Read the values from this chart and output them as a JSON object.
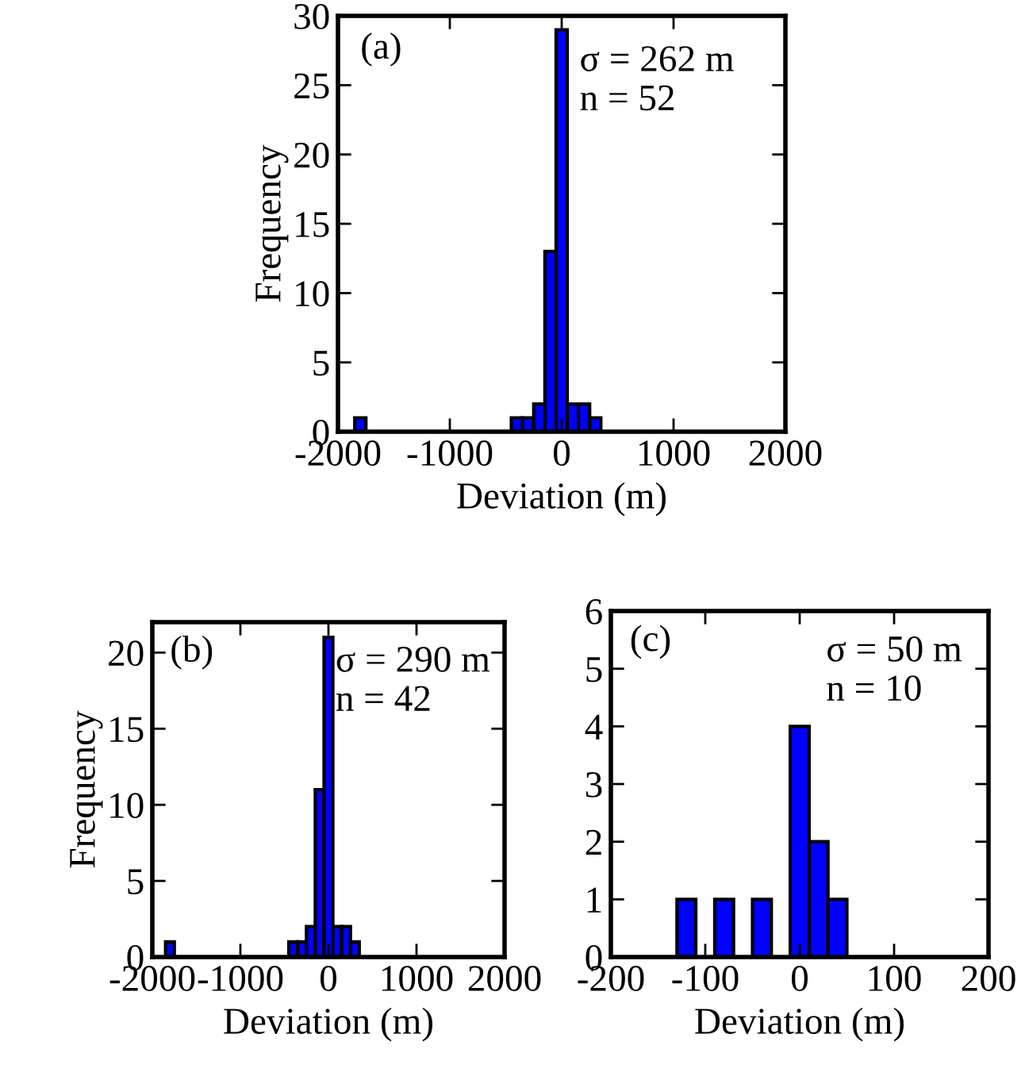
{
  "chart_data": [
    {
      "type": "histogram",
      "xlabel": "Deviation (m)",
      "ylabel": "Frequency",
      "color": "#0000ff",
      "annotations": [
        "(a)",
        "σ = 262 m\nn = 52"
      ],
      "bins": [
        -1850,
        -1750,
        -1650,
        -1550,
        -1450,
        -1350,
        -1250,
        -1150,
        -1050,
        -950,
        -850,
        -750,
        -650,
        -550,
        -450,
        -350,
        -250,
        -150,
        -50,
        50,
        150,
        250,
        350
      ],
      "values": [
        1,
        0,
        0,
        0,
        0,
        0,
        0,
        0,
        0,
        0,
        0,
        0,
        0,
        0,
        1,
        1,
        2,
        13,
        29,
        2,
        2,
        1
      ],
      "xlim": [
        -2000,
        2000
      ],
      "xticks": [
        -2000,
        -1000,
        0,
        1000,
        2000
      ],
      "ylim": [
        0,
        30
      ],
      "yticks": [
        0,
        5,
        10,
        15,
        20,
        25,
        30
      ]
    },
    {
      "type": "histogram",
      "xlabel": "Deviation (m)",
      "ylabel": "Frequency",
      "color": "#0000ff",
      "annotations": [
        "(b)",
        "σ = 290 m\nn = 42"
      ],
      "bins": [
        -1850,
        -1750,
        -1650,
        -1550,
        -1450,
        -1350,
        -1250,
        -1150,
        -1050,
        -950,
        -850,
        -750,
        -650,
        -550,
        -450,
        -350,
        -250,
        -150,
        -50,
        50,
        150,
        250,
        350
      ],
      "values": [
        1,
        0,
        0,
        0,
        0,
        0,
        0,
        0,
        0,
        0,
        0,
        0,
        0,
        0,
        1,
        1,
        2,
        11,
        21,
        2,
        2,
        1
      ],
      "xlim": [
        -2000,
        2000
      ],
      "xticks": [
        -2000,
        -1000,
        0,
        1000,
        2000
      ],
      "ylim": [
        0,
        22
      ],
      "yticks": [
        0,
        5,
        10,
        15,
        20
      ]
    },
    {
      "type": "histogram",
      "xlabel": "Deviation (m)",
      "color": "#0000ff",
      "annotations": [
        "(c)",
        "σ = 50 m\nn = 10"
      ],
      "bins": [
        -130,
        -110,
        -90,
        -70,
        -50,
        -30,
        -10,
        10,
        30,
        50
      ],
      "values": [
        1,
        0,
        1,
        0,
        1,
        0,
        4,
        2,
        1
      ],
      "xlim": [
        -200,
        200
      ],
      "xticks": [
        -200,
        -100,
        0,
        100,
        200
      ],
      "ylim": [
        0,
        6
      ],
      "yticks": [
        0,
        1,
        2,
        3,
        4,
        5,
        6
      ]
    }
  ]
}
